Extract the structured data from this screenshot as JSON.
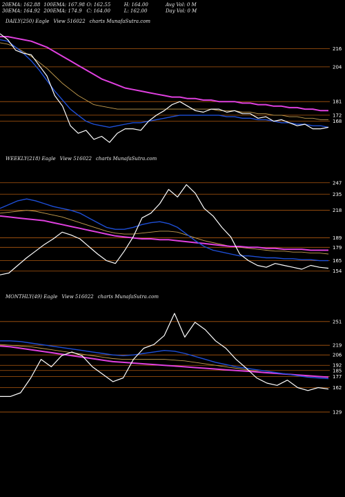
{
  "header": {
    "row1": [
      "20EMA: 162.88",
      "100EMA: 167.98",
      "O: 162.55",
      "H: 164.00",
      "Avg Vol: 0  M"
    ],
    "row2": [
      "30EMA: 164.92",
      "200EMA: 174.9",
      "C: 164.00",
      "L: 162.00",
      "Day Vol: 0  M"
    ]
  },
  "panels": [
    {
      "label": [
        "DAILY(250) Eagle",
        "View 516022",
        "charts MunafaSutra.com"
      ]
    },
    {
      "label": [
        "WEEKLY(218) Eagle",
        "View 516022",
        "charts MunafaSutra.com"
      ]
    },
    {
      "label": [
        "MONTHLY(49) Eagle",
        "View 516022",
        "charts MunafaSutra.com"
      ]
    }
  ],
  "colors": {
    "background": "#000000",
    "price": "#ffffff",
    "ema_fast": "#1e4fd8",
    "ema_slow": "#e040e0",
    "ema_mid": "#c8a050",
    "level_line": "#b05a10"
  },
  "chart_data": [
    {
      "type": "line",
      "name": "daily",
      "ticks": [
        216,
        204,
        181,
        172,
        168
      ],
      "ylim": [
        150,
        230
      ],
      "series": [
        {
          "name": "price",
          "values": [
            226,
            222,
            215,
            213,
            212,
            205,
            198,
            185,
            178,
            165,
            160,
            162,
            156,
            158,
            154,
            160,
            163,
            163,
            162,
            168,
            172,
            175,
            179,
            181,
            178,
            175,
            174,
            176,
            176,
            174,
            175,
            173,
            173,
            170,
            171,
            168,
            169,
            167,
            165,
            166,
            163,
            163,
            164
          ]
        },
        {
          "name": "ema_fast",
          "values": [
            222,
            221,
            217,
            213,
            208,
            202,
            195,
            188,
            182,
            176,
            172,
            168,
            166,
            165,
            164,
            165,
            166,
            167,
            167,
            168,
            169,
            170,
            171,
            172,
            172,
            172,
            172,
            172,
            172,
            171,
            171,
            170,
            170,
            169,
            169,
            168,
            167,
            167,
            166,
            166,
            165,
            165,
            164
          ]
        },
        {
          "name": "ema_mid",
          "values": [
            220,
            219,
            217,
            214,
            211,
            207,
            203,
            198,
            193,
            189,
            185,
            182,
            179,
            178,
            177,
            176,
            176,
            176,
            176,
            176,
            176,
            176,
            176,
            176,
            176,
            176,
            176,
            176,
            175,
            175,
            175,
            174,
            174,
            173,
            173,
            172,
            172,
            171,
            171,
            170,
            170,
            169,
            169
          ]
        },
        {
          "name": "ema_slow",
          "values": [
            224,
            224,
            223,
            222,
            221,
            219,
            217,
            214,
            211,
            208,
            205,
            202,
            199,
            196,
            194,
            192,
            190,
            189,
            188,
            187,
            186,
            185,
            184,
            184,
            183,
            183,
            182,
            182,
            181,
            181,
            181,
            180,
            180,
            179,
            179,
            178,
            178,
            177,
            177,
            176,
            176,
            175,
            175
          ]
        }
      ]
    },
    {
      "type": "line",
      "name": "weekly",
      "ticks": [
        247,
        235,
        218,
        189,
        179,
        165,
        154
      ],
      "ylim": [
        140,
        265
      ],
      "series": [
        {
          "name": "price",
          "values": [
            150,
            152,
            160,
            168,
            175,
            182,
            188,
            195,
            192,
            188,
            180,
            172,
            165,
            162,
            175,
            190,
            210,
            215,
            225,
            240,
            232,
            245,
            236,
            220,
            212,
            200,
            190,
            172,
            165,
            160,
            158,
            162,
            160,
            158,
            156,
            160,
            158,
            157
          ]
        },
        {
          "name": "ema_fast",
          "values": [
            220,
            224,
            228,
            230,
            228,
            225,
            222,
            220,
            218,
            215,
            210,
            205,
            200,
            198,
            198,
            200,
            203,
            205,
            206,
            204,
            200,
            193,
            186,
            180,
            176,
            174,
            172,
            170,
            170,
            169,
            168,
            168,
            167,
            167,
            166,
            166,
            165,
            165
          ]
        },
        {
          "name": "ema_mid",
          "values": [
            215,
            216,
            217,
            218,
            217,
            215,
            213,
            211,
            208,
            205,
            202,
            199,
            196,
            194,
            193,
            193,
            194,
            195,
            196,
            196,
            195,
            192,
            189,
            186,
            184,
            182,
            180,
            179,
            178,
            177,
            176,
            175,
            175,
            174,
            174,
            173,
            173,
            172
          ]
        },
        {
          "name": "ema_slow",
          "values": [
            212,
            211,
            210,
            209,
            208,
            207,
            205,
            203,
            201,
            199,
            197,
            195,
            193,
            191,
            190,
            189,
            188,
            188,
            187,
            187,
            186,
            185,
            184,
            183,
            182,
            181,
            180,
            180,
            179,
            179,
            178,
            178,
            177,
            177,
            177,
            176,
            176,
            176
          ]
        }
      ]
    },
    {
      "type": "line",
      "name": "monthly",
      "ticks": [
        251,
        219,
        206,
        192,
        185,
        177,
        162,
        129
      ],
      "ylim": [
        115,
        275
      ],
      "series": [
        {
          "name": "price",
          "values": [
            150,
            150,
            155,
            175,
            200,
            190,
            205,
            210,
            205,
            190,
            180,
            170,
            175,
            200,
            215,
            220,
            232,
            262,
            230,
            250,
            240,
            225,
            215,
            200,
            188,
            175,
            168,
            165,
            172,
            162,
            158,
            162,
            160
          ]
        },
        {
          "name": "ema_fast",
          "values": [
            225,
            225,
            224,
            222,
            220,
            218,
            216,
            214,
            212,
            210,
            208,
            206,
            205,
            206,
            208,
            210,
            212,
            211,
            208,
            204,
            200,
            196,
            193,
            190,
            188,
            186,
            184,
            182,
            180,
            178,
            176,
            175,
            174
          ]
        },
        {
          "name": "ema_mid",
          "values": [
            220,
            219,
            218,
            217,
            215,
            213,
            211,
            209,
            207,
            205,
            203,
            201,
            200,
            200,
            200,
            200,
            200,
            199,
            198,
            196,
            194,
            192,
            190,
            188,
            186,
            184,
            182,
            181,
            180,
            179,
            178,
            177,
            176
          ]
        },
        {
          "name": "ema_slow",
          "values": [
            218,
            217,
            215,
            213,
            211,
            209,
            207,
            205,
            203,
            201,
            199,
            197,
            196,
            195,
            194,
            193,
            192,
            191,
            190,
            189,
            188,
            187,
            186,
            185,
            184,
            183,
            182,
            181,
            180,
            179,
            178,
            177,
            176
          ]
        }
      ]
    }
  ]
}
